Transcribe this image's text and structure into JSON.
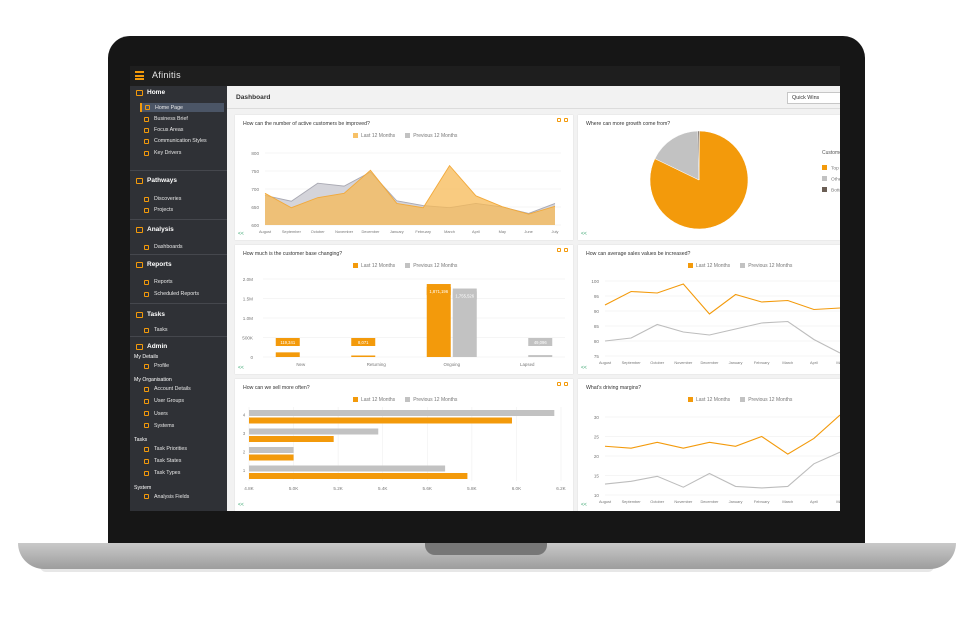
{
  "app": {
    "title": "Afinitis"
  },
  "sidebar": {
    "sections": [
      {
        "label": "Home",
        "items": [
          "Home Page",
          "Business Brief",
          "Focus Areas",
          "Communication Styles",
          "Key Drivers"
        ]
      },
      {
        "label": "Pathways",
        "items": [
          "Discoveries",
          "Projects"
        ]
      },
      {
        "label": "Analysis",
        "items": [
          "Dashboards"
        ]
      },
      {
        "label": "Reports",
        "items": [
          "Reports",
          "Scheduled Reports"
        ]
      },
      {
        "label": "Tasks",
        "items": [
          "Tasks"
        ]
      },
      {
        "label": "Admin",
        "groups": [
          {
            "label": "My Details",
            "items": [
              "Profile"
            ]
          },
          {
            "label": "My Organisation",
            "items": [
              "Account Details",
              "User Groups",
              "Users",
              "Systems"
            ]
          },
          {
            "label": "Tasks",
            "items": [
              "Task Priorities",
              "Task States",
              "Task Types"
            ]
          },
          {
            "label": "System",
            "items": [
              "Analysis Fields"
            ]
          }
        ]
      }
    ]
  },
  "header": {
    "title": "Dashboard",
    "dropdown": "Quick Wins"
  },
  "colors": {
    "accent": "#f39a0b",
    "grey": "#c2c2c2",
    "sidebar": "#2f3136"
  },
  "legend": {
    "last": "Last 12 Months",
    "prev": "Previous 12 Months"
  },
  "cards": {
    "c1": {
      "question": "How can the number of active customers be improved?"
    },
    "c2": {
      "question": "Where can more growth come from?",
      "legend_title": "Custome",
      "legend": [
        "Top",
        "Othe",
        "Botto"
      ]
    },
    "c3": {
      "question": "How much is the customer base changing?"
    },
    "c4": {
      "question": "How can average sales values be increased?"
    },
    "c5": {
      "question": "How can we sell more often?"
    },
    "c6": {
      "question": "What's driving margins?"
    }
  },
  "chart_data": [
    {
      "id": "c1",
      "type": "area",
      "categories": [
        "August",
        "September",
        "October",
        "November",
        "December",
        "January",
        "February",
        "March",
        "April",
        "May",
        "June",
        "July"
      ],
      "ylim": [
        600,
        800
      ],
      "yticks": [
        600,
        650,
        700,
        750,
        800
      ],
      "series": [
        {
          "name": "Last 12 Months",
          "values": [
            688,
            648,
            676,
            688,
            752,
            660,
            648,
            765,
            681,
            651,
            630,
            652
          ]
        },
        {
          "name": "Previous 12 Months",
          "values": [
            682,
            666,
            716,
            708,
            747,
            667,
            654,
            648,
            660,
            650,
            632,
            660
          ]
        }
      ]
    },
    {
      "id": "c2",
      "type": "pie",
      "slices": [
        {
          "label": "Top",
          "value": 82,
          "color": "#f39a0b"
        },
        {
          "label": "Othe",
          "value": 17.5,
          "color": "#c2c2c2"
        },
        {
          "label": "Botto",
          "value": 0.5,
          "color": "#6b5e55"
        }
      ]
    },
    {
      "id": "c3",
      "type": "bar",
      "categories": [
        "New",
        "Returning",
        "Ongoing",
        "Lapsed"
      ],
      "ylim": [
        0,
        2000000
      ],
      "yticks": [
        "0",
        "500K",
        "1.0M",
        "1.5M",
        "2.0M"
      ],
      "series": [
        {
          "name": "Last 12 Months",
          "values": [
            119341,
            8071,
            1871196,
            0
          ],
          "labels": [
            "119,341",
            "8,071",
            "1,871,196",
            ""
          ]
        },
        {
          "name": "Previous 12 Months",
          "values": [
            0,
            0,
            1755526,
            49096
          ],
          "labels": [
            "",
            "",
            "1,755,526",
            "49,096"
          ]
        }
      ]
    },
    {
      "id": "c4",
      "type": "line",
      "categories": [
        "August",
        "September",
        "October",
        "November",
        "December",
        "January",
        "February",
        "March",
        "April",
        "May"
      ],
      "ylim": [
        75,
        100
      ],
      "yticks": [
        75,
        80,
        85,
        90,
        95,
        100
      ],
      "series": [
        {
          "name": "Last 12 Months",
          "values": [
            92,
            96.5,
            96,
            99,
            89,
            95.5,
            93,
            93.5,
            90.5,
            91
          ]
        },
        {
          "name": "Previous 12 Months",
          "values": [
            80,
            81,
            85.5,
            83,
            82,
            84,
            86,
            86.5,
            80.5,
            76
          ]
        }
      ]
    },
    {
      "id": "c5",
      "type": "hbar",
      "categories": [
        "4",
        "3",
        "2",
        "1"
      ],
      "xlim": [
        4800,
        6200
      ],
      "xticks": [
        "4.8K",
        "5.0K",
        "5.2K",
        "5.4K",
        "5.6K",
        "5.8K",
        "6.0K",
        "6.2K"
      ],
      "series": [
        {
          "name": "Previous 12 Months",
          "values": [
            6170,
            5380,
            5000,
            5680
          ]
        },
        {
          "name": "Last 12 Months",
          "values": [
            5980,
            5180,
            5000,
            5780
          ]
        }
      ]
    },
    {
      "id": "c6",
      "type": "line",
      "categories": [
        "August",
        "September",
        "October",
        "November",
        "December",
        "January",
        "February",
        "March",
        "April",
        "May"
      ],
      "ylim": [
        10,
        30
      ],
      "yticks": [
        10,
        15,
        20,
        25,
        30
      ],
      "series": [
        {
          "name": "Last 12 Months",
          "values": [
            22.5,
            22,
            23.5,
            22,
            23.5,
            22.5,
            25,
            20.5,
            24.5,
            30.5
          ]
        },
        {
          "name": "Previous 12 Months",
          "values": [
            12.8,
            13.5,
            14.8,
            12,
            15.5,
            12.2,
            11.8,
            12.2,
            18,
            21
          ]
        }
      ]
    }
  ]
}
